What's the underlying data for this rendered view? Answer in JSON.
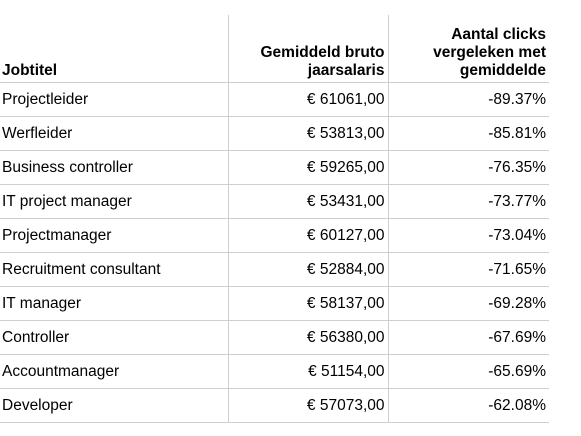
{
  "table": {
    "headers": {
      "job_title": "Jobtitel",
      "salary": "Gemiddeld bruto jaarsalaris",
      "clicks": "Aantal clicks vergeleken met gemiddelde"
    },
    "rows": [
      {
        "job_title": "Projectleider",
        "salary": "€ 61061,00",
        "clicks": "-89.37%"
      },
      {
        "job_title": "Werfleider",
        "salary": "€ 53813,00",
        "clicks": "-85.81%"
      },
      {
        "job_title": "Business controller",
        "salary": "€ 59265,00",
        "clicks": "-76.35%"
      },
      {
        "job_title": "IT project manager",
        "salary": "€ 53431,00",
        "clicks": "-73.77%"
      },
      {
        "job_title": "Projectmanager",
        "salary": "€ 60127,00",
        "clicks": "-73.04%"
      },
      {
        "job_title": "Recruitment consultant",
        "salary": "€ 52884,00",
        "clicks": "-71.65%"
      },
      {
        "job_title": "IT manager",
        "salary": "€ 58137,00",
        "clicks": "-69.28%"
      },
      {
        "job_title": "Controller",
        "salary": "€ 56380,00",
        "clicks": "-67.69%"
      },
      {
        "job_title": "Accountmanager",
        "salary": "€ 51154,00",
        "clicks": "-65.69%"
      },
      {
        "job_title": "Developer",
        "salary": "€ 57073,00",
        "clicks": "-62.08%"
      }
    ]
  },
  "colors": {
    "gridline": "#cfcfcf",
    "text": "#000000",
    "background": "#ffffff"
  }
}
